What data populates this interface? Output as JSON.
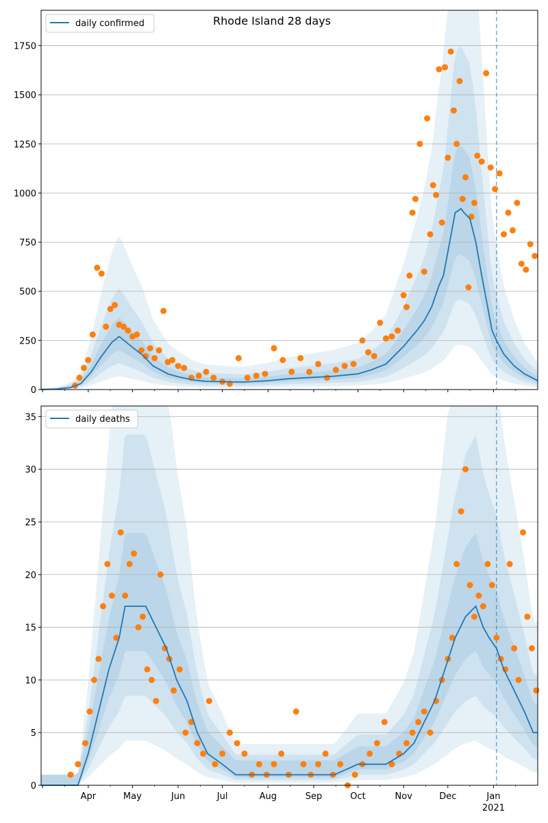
{
  "chart_data": [
    {
      "type": "line",
      "title": "Rhode Island 28 days",
      "legend": {
        "entries": [
          "daily confirmed"
        ],
        "placement": "upper-left"
      },
      "grid": {
        "y": true,
        "x": false
      },
      "xlim": [
        "2020-02-29",
        "2021-01-31"
      ],
      "ylim": [
        0,
        1930
      ],
      "y_ticks": [
        0,
        250,
        500,
        750,
        1000,
        1250,
        1500,
        1750
      ],
      "x_tick_labels": [],
      "vertical_marker": "2021-01-03",
      "colors": {
        "line": "#1f77b4",
        "points": "#ff7f0e",
        "bands": "#1f77b4",
        "marker": "#1f77b4"
      },
      "series": [
        {
          "name": "daily confirmed",
          "kind": "line",
          "x": [
            "2020-02-29",
            "2020-03-10",
            "2020-03-20",
            "2020-03-27",
            "2020-04-03",
            "2020-04-10",
            "2020-04-17",
            "2020-04-22",
            "2020-05-01",
            "2020-05-08",
            "2020-05-15",
            "2020-05-25",
            "2020-06-01",
            "2020-06-12",
            "2020-06-20",
            "2020-07-01",
            "2020-07-15",
            "2020-08-01",
            "2020-08-15",
            "2020-09-01",
            "2020-09-15",
            "2020-10-01",
            "2020-10-10",
            "2020-10-20",
            "2020-11-01",
            "2020-11-10",
            "2020-11-15",
            "2020-11-20",
            "2020-11-25",
            "2020-11-28",
            "2020-12-01",
            "2020-12-06",
            "2020-12-10",
            "2020-12-12",
            "2020-12-16",
            "2020-12-20",
            "2020-12-24",
            "2020-12-28",
            "2020-12-31",
            "2021-01-03",
            "2021-01-08",
            "2021-01-15",
            "2021-01-22",
            "2021-01-31"
          ],
          "y": [
            0,
            2,
            10,
            30,
            90,
            170,
            240,
            270,
            215,
            175,
            120,
            80,
            65,
            48,
            42,
            40,
            38,
            45,
            55,
            62,
            68,
            80,
            100,
            130,
            220,
            300,
            350,
            420,
            530,
            580,
            700,
            900,
            920,
            900,
            870,
            750,
            580,
            420,
            300,
            250,
            180,
            120,
            80,
            45
          ]
        },
        {
          "name": "",
          "kind": "scatter",
          "x": [
            "2020-03-23",
            "2020-03-26",
            "2020-03-29",
            "2020-04-01",
            "2020-04-04",
            "2020-04-07",
            "2020-04-10",
            "2020-04-13",
            "2020-04-16",
            "2020-04-19",
            "2020-04-22",
            "2020-04-25",
            "2020-04-28",
            "2020-05-01",
            "2020-05-04",
            "2020-05-07",
            "2020-05-10",
            "2020-05-13",
            "2020-05-16",
            "2020-05-19",
            "2020-05-22",
            "2020-05-25",
            "2020-05-28",
            "2020-06-01",
            "2020-06-05",
            "2020-06-10",
            "2020-06-15",
            "2020-06-20",
            "2020-06-25",
            "2020-07-01",
            "2020-07-06",
            "2020-07-12",
            "2020-07-18",
            "2020-07-24",
            "2020-07-30",
            "2020-08-05",
            "2020-08-11",
            "2020-08-17",
            "2020-08-23",
            "2020-08-29",
            "2020-09-04",
            "2020-09-10",
            "2020-09-16",
            "2020-09-22",
            "2020-09-28",
            "2020-10-04",
            "2020-10-08",
            "2020-10-12",
            "2020-10-16",
            "2020-10-20",
            "2020-10-24",
            "2020-10-28",
            "2020-11-01",
            "2020-11-03",
            "2020-11-05",
            "2020-11-07",
            "2020-11-09",
            "2020-11-12",
            "2020-11-15",
            "2020-11-17",
            "2020-11-19",
            "2020-11-21",
            "2020-11-23",
            "2020-11-25",
            "2020-11-27",
            "2020-11-29",
            "2020-12-01",
            "2020-12-03",
            "2020-12-05",
            "2020-12-07",
            "2020-12-09",
            "2020-12-11",
            "2020-12-13",
            "2020-12-15",
            "2020-12-17",
            "2020-12-19",
            "2020-12-21",
            "2020-12-24",
            "2020-12-27",
            "2020-12-30",
            "2021-01-02",
            "2021-01-05",
            "2021-01-08",
            "2021-01-11",
            "2021-01-14",
            "2021-01-17",
            "2021-01-20",
            "2021-01-23",
            "2021-01-26",
            "2021-01-29"
          ],
          "y": [
            20,
            60,
            110,
            150,
            280,
            620,
            590,
            320,
            410,
            430,
            330,
            320,
            300,
            270,
            280,
            200,
            170,
            210,
            160,
            200,
            400,
            140,
            150,
            120,
            110,
            60,
            70,
            90,
            60,
            40,
            30,
            160,
            60,
            70,
            80,
            210,
            150,
            90,
            160,
            90,
            130,
            60,
            100,
            120,
            130,
            250,
            190,
            170,
            340,
            260,
            270,
            300,
            480,
            420,
            580,
            900,
            970,
            1250,
            600,
            1380,
            790,
            1040,
            990,
            1630,
            850,
            1640,
            1180,
            1720,
            1420,
            1250,
            1570,
            970,
            1080,
            520,
            880,
            950,
            1190,
            1160,
            1610,
            1130,
            1020,
            1100,
            790,
            900,
            810,
            950,
            640,
            610,
            740,
            680
          ]
        }
      ]
    },
    {
      "type": "line",
      "title": "",
      "legend": {
        "entries": [
          "daily deaths"
        ],
        "placement": "upper-left"
      },
      "grid": {
        "y": true,
        "x": false
      },
      "xlim": [
        "2020-02-29",
        "2021-01-31"
      ],
      "ylim": [
        0,
        36
      ],
      "y_ticks": [
        0,
        5,
        10,
        15,
        20,
        25,
        30,
        35
      ],
      "x_tick_labels": [
        "Apr",
        "May",
        "Jun",
        "Jul",
        "Aug",
        "Sep",
        "Oct",
        "Nov",
        "Dec",
        "Jan"
      ],
      "x_tick_dates": [
        "2020-04-01",
        "2020-05-01",
        "2020-06-01",
        "2020-07-01",
        "2020-08-01",
        "2020-09-01",
        "2020-10-01",
        "2020-11-01",
        "2020-12-01",
        "2021-01-01"
      ],
      "x_sublabel": {
        "under": "Jan",
        "text": "2021"
      },
      "vertical_marker": "2021-01-03",
      "colors": {
        "line": "#1f77b4",
        "points": "#ff7f0e",
        "bands": "#1f77b4",
        "marker": "#1f77b4"
      },
      "series": [
        {
          "name": "daily deaths",
          "kind": "line",
          "x": [
            "2020-02-29",
            "2020-03-15",
            "2020-03-25",
            "2020-04-01",
            "2020-04-08",
            "2020-04-15",
            "2020-04-22",
            "2020-04-26",
            "2020-05-03",
            "2020-05-10",
            "2020-05-17",
            "2020-05-24",
            "2020-05-31",
            "2020-06-07",
            "2020-06-14",
            "2020-06-21",
            "2020-07-01",
            "2020-07-10",
            "2020-07-20",
            "2020-08-01",
            "2020-08-15",
            "2020-09-01",
            "2020-09-15",
            "2020-10-01",
            "2020-10-10",
            "2020-10-20",
            "2020-11-01",
            "2020-11-08",
            "2020-11-15",
            "2020-11-22",
            "2020-11-29",
            "2020-12-06",
            "2020-12-13",
            "2020-12-20",
            "2020-12-25",
            "2020-12-29",
            "2021-01-03",
            "2021-01-08",
            "2021-01-15",
            "2021-01-22",
            "2021-01-28",
            "2021-01-31"
          ],
          "y": [
            0,
            0,
            0,
            3,
            7,
            11,
            14,
            17,
            17,
            17,
            15,
            13,
            10,
            8,
            5,
            3,
            2,
            1,
            1,
            1,
            1,
            1,
            1,
            2,
            2,
            2,
            3,
            4,
            6,
            8,
            11,
            14,
            16,
            17,
            15,
            14,
            13,
            11,
            9,
            7,
            5,
            5
          ]
        },
        {
          "name": "",
          "kind": "scatter",
          "x": [
            "2020-03-20",
            "2020-03-25",
            "2020-03-30",
            "2020-04-02",
            "2020-04-05",
            "2020-04-08",
            "2020-04-11",
            "2020-04-14",
            "2020-04-17",
            "2020-04-20",
            "2020-04-23",
            "2020-04-26",
            "2020-04-29",
            "2020-05-02",
            "2020-05-05",
            "2020-05-08",
            "2020-05-11",
            "2020-05-14",
            "2020-05-17",
            "2020-05-20",
            "2020-05-23",
            "2020-05-26",
            "2020-05-29",
            "2020-06-02",
            "2020-06-06",
            "2020-06-10",
            "2020-06-14",
            "2020-06-18",
            "2020-06-22",
            "2020-06-26",
            "2020-07-01",
            "2020-07-06",
            "2020-07-11",
            "2020-07-16",
            "2020-07-21",
            "2020-07-26",
            "2020-07-31",
            "2020-08-05",
            "2020-08-10",
            "2020-08-15",
            "2020-08-20",
            "2020-08-25",
            "2020-08-30",
            "2020-09-04",
            "2020-09-09",
            "2020-09-14",
            "2020-09-19",
            "2020-09-24",
            "2020-09-29",
            "2020-10-04",
            "2020-10-09",
            "2020-10-14",
            "2020-10-19",
            "2020-10-24",
            "2020-10-29",
            "2020-11-03",
            "2020-11-07",
            "2020-11-11",
            "2020-11-15",
            "2020-11-19",
            "2020-11-23",
            "2020-11-27",
            "2020-12-01",
            "2020-12-04",
            "2020-12-07",
            "2020-12-10",
            "2020-12-13",
            "2020-12-16",
            "2020-12-19",
            "2020-12-22",
            "2020-12-25",
            "2020-12-28",
            "2020-12-31",
            "2021-01-03",
            "2021-01-06",
            "2021-01-09",
            "2021-01-12",
            "2021-01-15",
            "2021-01-18",
            "2021-01-21",
            "2021-01-24",
            "2021-01-27",
            "2021-01-30"
          ],
          "y": [
            1,
            2,
            4,
            7,
            10,
            12,
            17,
            21,
            18,
            14,
            24,
            18,
            21,
            22,
            15,
            16,
            11,
            10,
            8,
            20,
            13,
            12,
            9,
            11,
            5,
            6,
            4,
            3,
            8,
            2,
            3,
            5,
            4,
            3,
            1,
            2,
            1,
            2,
            3,
            1,
            7,
            2,
            1,
            2,
            3,
            1,
            2,
            0,
            1,
            2,
            3,
            4,
            6,
            2,
            3,
            4,
            5,
            6,
            7,
            5,
            8,
            10,
            12,
            14,
            21,
            26,
            30,
            19,
            16,
            18,
            17,
            21,
            19,
            14,
            12,
            11,
            21,
            13,
            10,
            24,
            16,
            13,
            9
          ]
        }
      ]
    }
  ]
}
